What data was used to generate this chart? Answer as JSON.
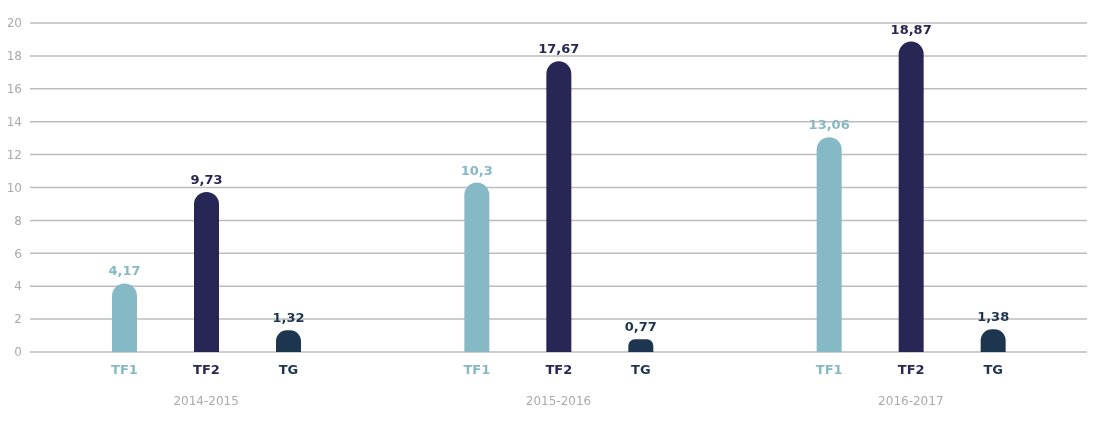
{
  "chart_data": {
    "type": "bar",
    "categories": [
      "2014-2015",
      "2015-2016",
      "2016-2017"
    ],
    "series": [
      {
        "name": "TF1",
        "color": "#86b9c6",
        "values": [
          4.17,
          10.3,
          13.06
        ],
        "value_labels": [
          "4,17",
          "10,3",
          "13,06"
        ]
      },
      {
        "name": "TF2",
        "color": "#272654",
        "values": [
          9.73,
          17.67,
          18.87
        ],
        "value_labels": [
          "9,73",
          "17,67",
          "18,87"
        ]
      },
      {
        "name": "TG",
        "color": "#1e3550",
        "values": [
          1.32,
          0.77,
          1.38
        ],
        "value_labels": [
          "1,32",
          "0,77",
          "1,38"
        ]
      }
    ],
    "ylim": [
      0,
      20
    ],
    "yticks": [
      0,
      2,
      4,
      6,
      8,
      10,
      12,
      14,
      16,
      18,
      20
    ],
    "grid": "y",
    "legend": false
  }
}
